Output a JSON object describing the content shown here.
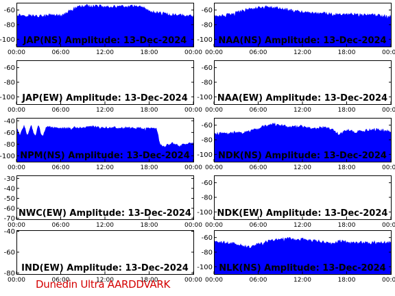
{
  "footer": "Dunedin Ultra AARDDVARK",
  "colors": {
    "fill": "#0000ff",
    "frame": "#000000",
    "footer": "#d40000"
  },
  "chart_data": [
    {
      "type": "area",
      "title": "JAP(NS) Amplitude: 13-Dec-2024",
      "yticks": [
        "-60",
        "-80",
        "-100"
      ],
      "ylim": [
        -110,
        -50
      ],
      "xticks": [
        "00:00",
        "06:00",
        "12:00",
        "18:00",
        "00:00"
      ],
      "xlim": [
        0,
        24
      ],
      "series": [
        {
          "x": [
            0,
            1,
            2,
            3,
            4,
            5,
            6,
            7,
            8,
            9,
            10,
            11,
            12,
            13,
            14,
            15,
            16,
            17,
            18,
            19,
            20,
            21,
            22,
            23,
            24
          ],
          "values": [
            -66,
            -67,
            -67,
            -68,
            -67,
            -66,
            -67,
            -62,
            -56,
            -54,
            -54,
            -54,
            -55,
            -55,
            -55,
            -55,
            -54,
            -54,
            -61,
            -63,
            -64,
            -66,
            -66,
            -67,
            -68
          ]
        }
      ]
    },
    {
      "type": "area",
      "title": "NAA(NS) Amplitude: 13-Dec-2024",
      "yticks": [
        "-60",
        "-80",
        "-100"
      ],
      "ylim": [
        -110,
        -50
      ],
      "xticks": [
        "00:00",
        "06:00",
        "12:00",
        "18:00",
        "00:00"
      ],
      "xlim": [
        0,
        24
      ],
      "series": [
        {
          "x": [
            0,
            1,
            2,
            3,
            4,
            5,
            6,
            7,
            8,
            9,
            10,
            11,
            12,
            13,
            14,
            15,
            16,
            17,
            18,
            19,
            20,
            21,
            22,
            23,
            24
          ],
          "values": [
            -68,
            -67,
            -66,
            -63,
            -60,
            -58,
            -56,
            -55,
            -56,
            -57,
            -59,
            -61,
            -62,
            -63,
            -64,
            -64,
            -65,
            -66,
            -65,
            -65,
            -66,
            -66,
            -67,
            -67,
            -68
          ]
        }
      ]
    },
    {
      "type": "area",
      "title": "JAP(EW) Amplitude: 13-Dec-2024",
      "yticks": [
        "-60",
        "-80",
        "-100"
      ],
      "ylim": [
        -110,
        -50
      ],
      "xticks": [
        "00:00",
        "06:00",
        "12:00",
        "18:00",
        "00:00"
      ],
      "xlim": [
        0,
        24
      ],
      "series": [
        {
          "x": [],
          "values": []
        }
      ]
    },
    {
      "type": "area",
      "title": "NAA(EW) Amplitude: 13-Dec-2024",
      "yticks": [
        "-60",
        "-80",
        "-100"
      ],
      "ylim": [
        -110,
        -50
      ],
      "xticks": [
        "00:00",
        "06:00",
        "12:00",
        "18:00",
        "00:00"
      ],
      "xlim": [
        0,
        24
      ],
      "series": [
        {
          "x": [],
          "values": []
        }
      ]
    },
    {
      "type": "area",
      "title": "NPM(NS) Amplitude: 13-Dec-2024",
      "yticks": [
        "-40",
        "-60",
        "-80",
        "-100"
      ],
      "ylim": [
        -110,
        -35
      ],
      "xticks": [
        "00:00",
        "06:00",
        "12:00",
        "18:00",
        "00:00"
      ],
      "xlim": [
        0,
        24
      ],
      "series": [
        {
          "x": [
            0,
            0.5,
            1,
            1.5,
            2,
            2.5,
            3,
            3.5,
            4,
            5,
            6,
            7,
            8,
            9,
            10,
            11,
            12,
            13,
            14,
            15,
            16,
            17,
            18,
            19,
            19.5,
            20,
            21,
            22,
            23,
            24
          ],
          "values": [
            -48,
            -65,
            -47,
            -66,
            -46,
            -67,
            -47,
            -68,
            -50,
            -51,
            -52,
            -52,
            -51,
            -51,
            -50,
            -50,
            -51,
            -51,
            -52,
            -51,
            -51,
            -52,
            -53,
            -53,
            -80,
            -84,
            -78,
            -82,
            -80,
            -78
          ]
        }
      ]
    },
    {
      "type": "area",
      "title": "NDK(NS) Amplitude: 13-Dec-2024",
      "yticks": [
        "-60",
        "-80",
        "-100"
      ],
      "ylim": [
        -110,
        -50
      ],
      "xticks": [
        "00:00",
        "06:00",
        "12:00",
        "18:00",
        "00:00"
      ],
      "xlim": [
        0,
        24
      ],
      "series": [
        {
          "x": [
            0,
            1,
            2,
            3,
            4,
            5,
            6,
            7,
            8,
            9,
            10,
            11,
            12,
            13,
            14,
            15,
            16,
            17,
            18,
            19,
            20,
            21,
            22,
            23,
            24
          ],
          "values": [
            -72,
            -70,
            -71,
            -69,
            -70,
            -67,
            -64,
            -61,
            -58,
            -59,
            -62,
            -61,
            -62,
            -63,
            -64,
            -62,
            -65,
            -72,
            -66,
            -69,
            -68,
            -66,
            -65,
            -67,
            -68
          ]
        }
      ]
    },
    {
      "type": "area",
      "title": "NWC(EW) Amplitude: 13-Dec-2024",
      "yticks": [
        "-30",
        "-40",
        "-50",
        "-60",
        "-70"
      ],
      "ylim": [
        -71,
        -27
      ],
      "xticks": [
        "00:00",
        "06:00",
        "12:00",
        "18:00",
        "00:00"
      ],
      "xlim": [
        0,
        24
      ],
      "series": [
        {
          "x": [],
          "values": []
        }
      ]
    },
    {
      "type": "area",
      "title": "NDK(EW) Amplitude: 13-Dec-2024",
      "yticks": [
        "-60",
        "-80",
        "-100"
      ],
      "ylim": [
        -110,
        -50
      ],
      "xticks": [
        "00:00",
        "06:00",
        "12:00",
        "18:00",
        "00:00"
      ],
      "xlim": [
        0,
        24
      ],
      "series": [
        {
          "x": [],
          "values": []
        }
      ]
    },
    {
      "type": "area",
      "title": "IND(EW) Amplitude: 13-Dec-2024",
      "yticks": [
        "-40",
        "-60",
        "-80"
      ],
      "ylim": [
        -81,
        -39
      ],
      "xticks": [
        "00:00",
        "06:00",
        "12:00",
        "18:00",
        "00:00"
      ],
      "xlim": [
        0,
        24
      ],
      "series": [
        {
          "x": [],
          "values": []
        }
      ]
    },
    {
      "type": "area",
      "title": "NLK(NS) Amplitude: 13-Dec-2024",
      "yticks": [
        "-60",
        "-80",
        "-100"
      ],
      "ylim": [
        -110,
        -50
      ],
      "xticks": [
        "00:00",
        "06:00",
        "12:00",
        "18:00",
        "00:00"
      ],
      "xlim": [
        0,
        24
      ],
      "series": [
        {
          "x": [
            0,
            1,
            2,
            3,
            4,
            5,
            6,
            7,
            8,
            9,
            10,
            11,
            12,
            13,
            14,
            15,
            16,
            17,
            18,
            19,
            20,
            21,
            22,
            23,
            24
          ],
          "values": [
            -66,
            -66,
            -67,
            -68,
            -71,
            -73,
            -69,
            -66,
            -63,
            -61,
            -61,
            -62,
            -62,
            -63,
            -64,
            -66,
            -69,
            -64,
            -66,
            -67,
            -66,
            -67,
            -65,
            -66,
            -66
          ]
        }
      ]
    }
  ]
}
